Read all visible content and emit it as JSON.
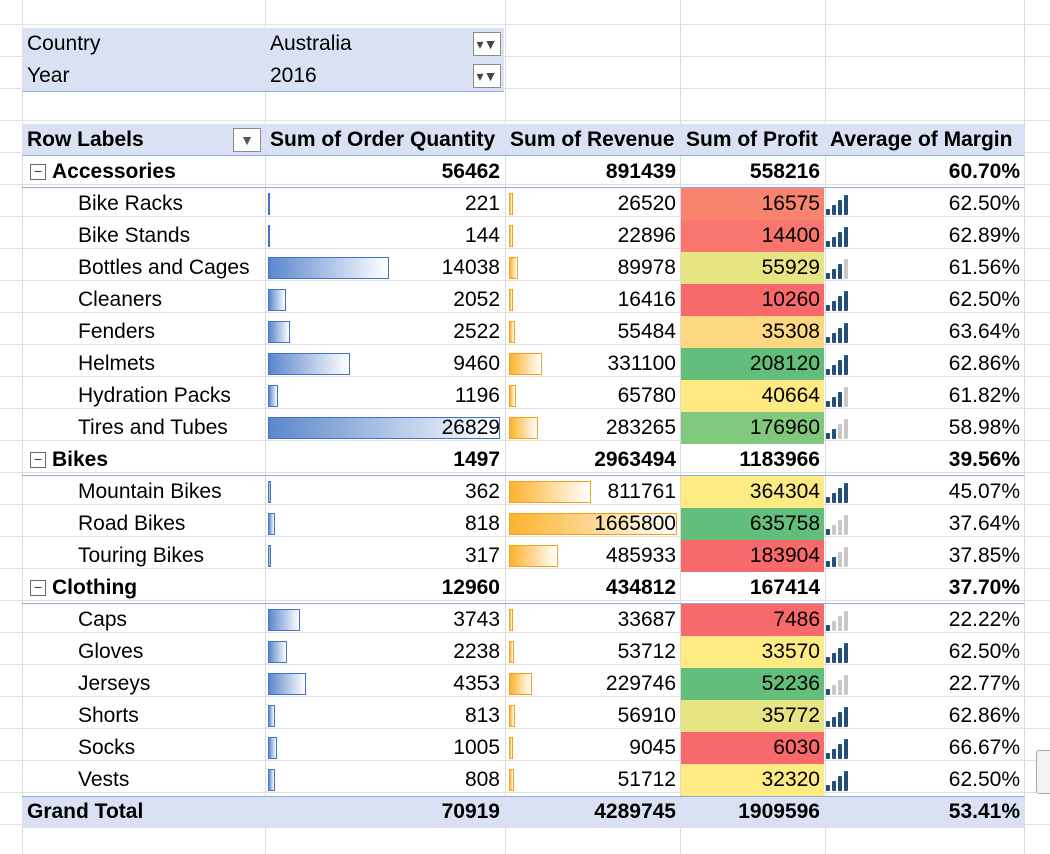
{
  "filters": [
    {
      "label": "Country",
      "value": "Australia"
    },
    {
      "label": "Year",
      "value": "2016"
    }
  ],
  "header": {
    "row_labels": "Row Labels",
    "order_quantity": "Sum of Order Quantity",
    "revenue": "Sum of Revenue",
    "profit": "Sum of Profit",
    "margin": "Average of Margin"
  },
  "rows": [
    {
      "type": "group",
      "name": "Accessories",
      "quantity": "56462",
      "revenue": "891439",
      "profit": "558216",
      "margin": "60.70%"
    },
    {
      "type": "item",
      "name": "Bike Racks",
      "quantity": "221",
      "revenue": "26520",
      "profit": "16575",
      "margin": "62.50%",
      "profit_color": "#f8846e",
      "signal_level": 4
    },
    {
      "type": "item",
      "name": "Bike Stands",
      "quantity": "144",
      "revenue": "22896",
      "profit": "14400",
      "margin": "62.89%",
      "profit_color": "#f8766d",
      "signal_level": 4
    },
    {
      "type": "item",
      "name": "Bottles and Cages",
      "quantity": "14038",
      "revenue": "89978",
      "profit": "55929",
      "margin": "61.56%",
      "profit_color": "#e6e483",
      "signal_level": 3
    },
    {
      "type": "item",
      "name": "Cleaners",
      "quantity": "2052",
      "revenue": "16416",
      "profit": "10260",
      "margin": "62.50%",
      "profit_color": "#f8696b",
      "signal_level": 4
    },
    {
      "type": "item",
      "name": "Fenders",
      "quantity": "2522",
      "revenue": "55484",
      "profit": "35308",
      "margin": "63.64%",
      "profit_color": "#fed880",
      "signal_level": 4
    },
    {
      "type": "item",
      "name": "Helmets",
      "quantity": "9460",
      "revenue": "331100",
      "profit": "208120",
      "margin": "62.86%",
      "profit_color": "#63be7b",
      "signal_level": 4
    },
    {
      "type": "item",
      "name": "Hydration Packs",
      "quantity": "1196",
      "revenue": "65780",
      "profit": "40664",
      "margin": "61.82%",
      "profit_color": "#fee983",
      "signal_level": 3
    },
    {
      "type": "item",
      "name": "Tires and Tubes",
      "quantity": "26829",
      "revenue": "283265",
      "profit": "176960",
      "margin": "58.98%",
      "profit_color": "#81c77c",
      "signal_level": 2
    },
    {
      "type": "group",
      "name": "Bikes",
      "quantity": "1497",
      "revenue": "2963494",
      "profit": "1183966",
      "margin": "39.56%"
    },
    {
      "type": "item",
      "name": "Mountain Bikes",
      "quantity": "362",
      "revenue": "811761",
      "profit": "364304",
      "margin": "45.07%",
      "profit_color": "#feeb84",
      "signal_level": 4
    },
    {
      "type": "item",
      "name": "Road Bikes",
      "quantity": "818",
      "revenue": "1665800",
      "profit": "635758",
      "margin": "37.64%",
      "profit_color": "#63be7b",
      "signal_level": 1
    },
    {
      "type": "item",
      "name": "Touring Bikes",
      "quantity": "317",
      "revenue": "485933",
      "profit": "183904",
      "margin": "37.85%",
      "profit_color": "#f8696b",
      "signal_level": 2
    },
    {
      "type": "group",
      "name": "Clothing",
      "quantity": "12960",
      "revenue": "434812",
      "profit": "167414",
      "margin": "37.70%"
    },
    {
      "type": "item",
      "name": "Caps",
      "quantity": "3743",
      "revenue": "33687",
      "profit": "7486",
      "margin": "22.22%",
      "profit_color": "#f8696b",
      "signal_level": 1
    },
    {
      "type": "item",
      "name": "Gloves",
      "quantity": "2238",
      "revenue": "53712",
      "profit": "33570",
      "margin": "62.50%",
      "profit_color": "#ffeb84",
      "signal_level": 4
    },
    {
      "type": "item",
      "name": "Jerseys",
      "quantity": "4353",
      "revenue": "229746",
      "profit": "52236",
      "margin": "22.77%",
      "profit_color": "#63be7b",
      "signal_level": 1
    },
    {
      "type": "item",
      "name": "Shorts",
      "quantity": "813",
      "revenue": "56910",
      "profit": "35772",
      "margin": "62.86%",
      "profit_color": "#e6e483",
      "signal_level": 4
    },
    {
      "type": "item",
      "name": "Socks",
      "quantity": "1005",
      "revenue": "9045",
      "profit": "6030",
      "margin": "66.67%",
      "profit_color": "#f8696b",
      "signal_level": 4
    },
    {
      "type": "item",
      "name": "Vests",
      "quantity": "808",
      "revenue": "51712",
      "profit": "32320",
      "margin": "62.50%",
      "profit_color": "#feeb84",
      "signal_level": 4
    }
  ],
  "grand_total": {
    "label": "Grand Total",
    "quantity": "70919",
    "revenue": "4289745",
    "profit": "1909596",
    "margin": "53.41%"
  },
  "colors": {
    "header_band": "#d9e1f2",
    "qty_bar": "#5b87cc",
    "revenue_bar": "#fdb22c",
    "signal_on": "#1f4e79",
    "signal_off": "#c8c8c8"
  },
  "icons": {
    "filter": "filter-icon",
    "dropdown": "dropdown-arrow-icon",
    "collapse": "collapse-minus-icon",
    "signal": "signal-bars-icon"
  }
}
